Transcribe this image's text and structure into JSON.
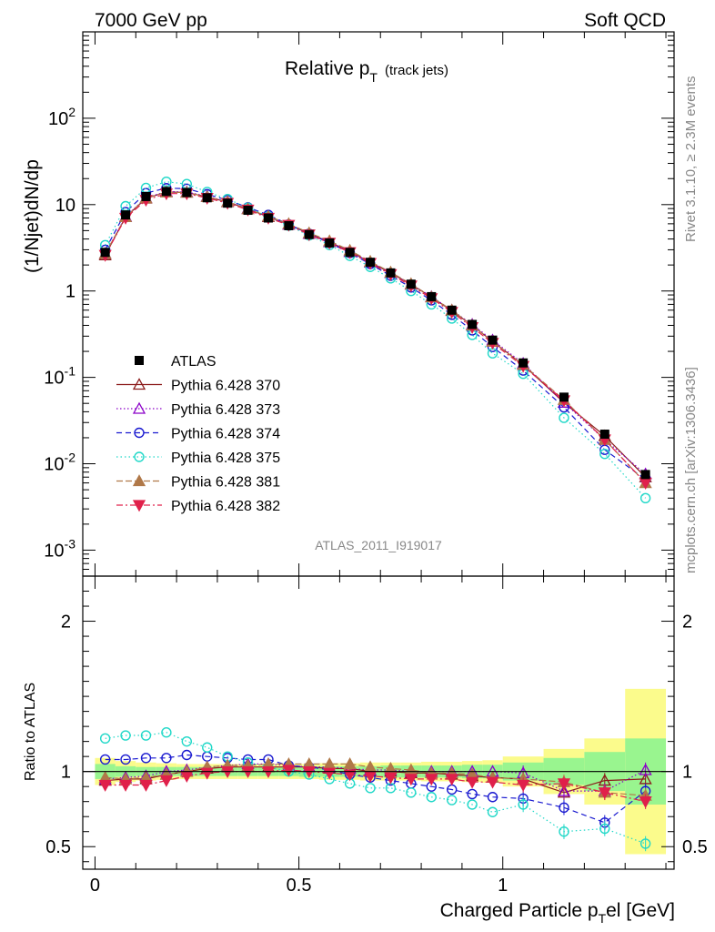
{
  "header": {
    "left": "7000 GeV pp",
    "right": "Soft QCD"
  },
  "plot_title_main": "Relative p",
  "plot_title_sub": "T",
  "plot_title_extra": "(track jets)",
  "watermark": "ATLAS_2011_I919017",
  "side_text_top": "Rivet 3.1.10, ≥ 2.3M events",
  "side_text_bottom": "mcplots.cern.ch [arXiv:1306.3436]",
  "ylabel_main": "(1/Njet)dN/dp",
  "ylabel_ratio": "Ratio to ATLAS",
  "xlabel": "Charged Particle p",
  "xlabel_tail": "el [GeV]",
  "colors": {
    "data": "#000000",
    "s370": "#8b1a1a",
    "s373": "#8b00c8",
    "s374": "#1a1ad0",
    "s375": "#20d8c8",
    "s381": "#b07848",
    "s382": "#e0204a",
    "band_green": "#99f58f",
    "band_yellow": "#fbfb8c"
  },
  "legend": [
    {
      "label": "ATLAS",
      "key": "data"
    },
    {
      "label": "Pythia 6.428 370",
      "key": "s370"
    },
    {
      "label": "Pythia 6.428 373",
      "key": "s373"
    },
    {
      "label": "Pythia 6.428 374",
      "key": "s374"
    },
    {
      "label": "Pythia 6.428 375",
      "key": "s375"
    },
    {
      "label": "Pythia 6.428 381",
      "key": "s381"
    },
    {
      "label": "Pythia 6.428 382",
      "key": "s382"
    }
  ],
  "chart_data": {
    "type": "line",
    "x": [
      0.025,
      0.075,
      0.125,
      0.175,
      0.225,
      0.275,
      0.325,
      0.375,
      0.425,
      0.475,
      0.525,
      0.575,
      0.625,
      0.675,
      0.725,
      0.775,
      0.825,
      0.875,
      0.925,
      0.975,
      1.05,
      1.15,
      1.25,
      1.35
    ],
    "xlim": [
      -0.03,
      1.42
    ],
    "ylim_main": [
      0.0005,
      1000
    ],
    "ylim_ratio": [
      0.35,
      2.3
    ],
    "x_ticks": [
      "0",
      "0.5",
      "1"
    ],
    "y_ticks_main": [
      "10^-3",
      "10^-2",
      "10^-1",
      "1",
      "10",
      "10^2"
    ],
    "y_ticks_ratio": [
      "0.5",
      "1",
      "2"
    ],
    "data": {
      "name": "ATLAS",
      "values": [
        2.8,
        7.6,
        12.4,
        14.2,
        13.8,
        12.0,
        10.4,
        8.6,
        7.0,
        5.7,
        4.5,
        3.6,
        2.8,
        2.15,
        1.62,
        1.2,
        0.86,
        0.6,
        0.41,
        0.27,
        0.147,
        0.059,
        0.022,
        0.0075
      ]
    },
    "series": [
      {
        "name": "Pythia 6.428 370",
        "key": "s370",
        "marker": "tri-up-open",
        "values": [
          2.6,
          7.2,
          11.8,
          14.0,
          13.8,
          12.3,
          10.7,
          8.9,
          7.2,
          5.9,
          4.6,
          3.7,
          2.85,
          2.15,
          1.62,
          1.19,
          0.85,
          0.59,
          0.4,
          0.26,
          0.14,
          0.051,
          0.021,
          0.007
        ],
        "ratio": [
          0.94,
          0.95,
          0.95,
          0.98,
          1.0,
          1.02,
          1.03,
          1.03,
          1.03,
          1.03,
          1.03,
          1.02,
          1.02,
          1.0,
          1.0,
          0.99,
          0.99,
          0.98,
          0.97,
          0.96,
          0.95,
          0.86,
          0.94,
          0.95
        ]
      },
      {
        "name": "Pythia 6.428 373",
        "key": "s373",
        "marker": "tri-up-open",
        "values": [
          2.7,
          7.3,
          12.0,
          14.2,
          14.0,
          12.5,
          10.8,
          9.0,
          7.3,
          5.9,
          4.6,
          3.7,
          2.85,
          2.15,
          1.62,
          1.2,
          0.86,
          0.6,
          0.41,
          0.27,
          0.145,
          0.051,
          0.019,
          0.0076
        ],
        "ratio": [
          0.95,
          0.96,
          0.97,
          1.0,
          1.01,
          1.03,
          1.04,
          1.05,
          1.05,
          1.04,
          1.03,
          1.03,
          1.02,
          1.01,
          1.01,
          1.0,
          1.0,
          1.0,
          1.0,
          1.0,
          0.99,
          0.87,
          0.87,
          1.01
        ]
      },
      {
        "name": "Pythia 6.428 374",
        "key": "s374",
        "marker": "circle-open",
        "values": [
          3.0,
          8.2,
          13.6,
          15.5,
          15.3,
          13.2,
          11.3,
          9.3,
          7.6,
          5.9,
          4.6,
          3.6,
          2.75,
          2.05,
          1.5,
          1.1,
          0.78,
          0.53,
          0.35,
          0.225,
          0.12,
          0.045,
          0.0145,
          0.0066
        ],
        "ratio": [
          1.08,
          1.08,
          1.09,
          1.09,
          1.11,
          1.1,
          1.09,
          1.08,
          1.08,
          1.04,
          1.03,
          1.01,
          0.98,
          0.96,
          0.94,
          0.92,
          0.9,
          0.88,
          0.85,
          0.83,
          0.82,
          0.76,
          0.66,
          0.87
        ]
      },
      {
        "name": "Pythia 6.428 375",
        "key": "s375",
        "marker": "circle-open",
        "values": [
          3.4,
          9.6,
          15.6,
          18.4,
          17.3,
          14.0,
          11.6,
          9.2,
          7.3,
          5.7,
          4.4,
          3.4,
          2.55,
          1.9,
          1.4,
          1.0,
          0.7,
          0.48,
          0.31,
          0.19,
          0.11,
          0.034,
          0.013,
          0.004
        ],
        "ratio": [
          1.22,
          1.24,
          1.24,
          1.26,
          1.2,
          1.16,
          1.1,
          1.06,
          1.03,
          1.0,
          0.98,
          0.95,
          0.92,
          0.89,
          0.89,
          0.86,
          0.83,
          0.81,
          0.78,
          0.73,
          0.78,
          0.6,
          0.62,
          0.52
        ]
      },
      {
        "name": "Pythia 6.428 381",
        "key": "s381",
        "marker": "tri-up-filled",
        "values": [
          2.7,
          7.2,
          11.9,
          13.9,
          13.8,
          12.3,
          10.8,
          8.9,
          7.3,
          6.0,
          4.7,
          3.8,
          2.95,
          2.2,
          1.65,
          1.21,
          0.85,
          0.6,
          0.4,
          0.26,
          0.14,
          0.055,
          0.019,
          0.006
        ],
        "ratio": [
          0.96,
          0.95,
          0.96,
          0.98,
          1.0,
          1.03,
          1.04,
          1.04,
          1.05,
          1.05,
          1.05,
          1.05,
          1.05,
          1.03,
          1.02,
          1.01,
          0.99,
          0.99,
          0.98,
          0.96,
          0.95,
          0.93,
          0.86,
          0.84
        ]
      },
      {
        "name": "Pythia 6.428 382",
        "key": "s382",
        "marker": "tri-down-filled",
        "values": [
          2.6,
          7.0,
          11.3,
          13.4,
          13.4,
          11.9,
          10.4,
          8.7,
          7.0,
          5.8,
          4.5,
          3.6,
          2.8,
          2.1,
          1.56,
          1.15,
          0.82,
          0.57,
          0.38,
          0.25,
          0.135,
          0.054,
          0.019,
          0.006
        ],
        "ratio": [
          0.91,
          0.91,
          0.91,
          0.94,
          0.97,
          0.99,
          1.0,
          1.0,
          1.0,
          1.01,
          1.0,
          0.99,
          0.98,
          0.97,
          0.96,
          0.95,
          0.95,
          0.95,
          0.93,
          0.93,
          0.91,
          0.92,
          0.86,
          0.8
        ]
      }
    ],
    "bands": {
      "x_edges": [
        0.0,
        0.05,
        0.1,
        0.15,
        0.2,
        0.25,
        0.3,
        0.35,
        0.4,
        0.45,
        0.5,
        0.55,
        0.6,
        0.65,
        0.7,
        0.75,
        0.8,
        0.85,
        0.9,
        0.95,
        1.0,
        1.1,
        1.2,
        1.3,
        1.4
      ],
      "green_half": [
        0.05,
        0.035,
        0.03,
        0.03,
        0.03,
        0.03,
        0.03,
        0.03,
        0.03,
        0.03,
        0.035,
        0.035,
        0.035,
        0.035,
        0.04,
        0.04,
        0.04,
        0.04,
        0.045,
        0.045,
        0.06,
        0.09,
        0.13,
        0.22
      ],
      "yellow_half": [
        0.09,
        0.07,
        0.06,
        0.055,
        0.05,
        0.05,
        0.05,
        0.05,
        0.05,
        0.05,
        0.05,
        0.055,
        0.055,
        0.06,
        0.06,
        0.06,
        0.065,
        0.065,
        0.07,
        0.075,
        0.1,
        0.15,
        0.22,
        0.55
      ]
    }
  }
}
